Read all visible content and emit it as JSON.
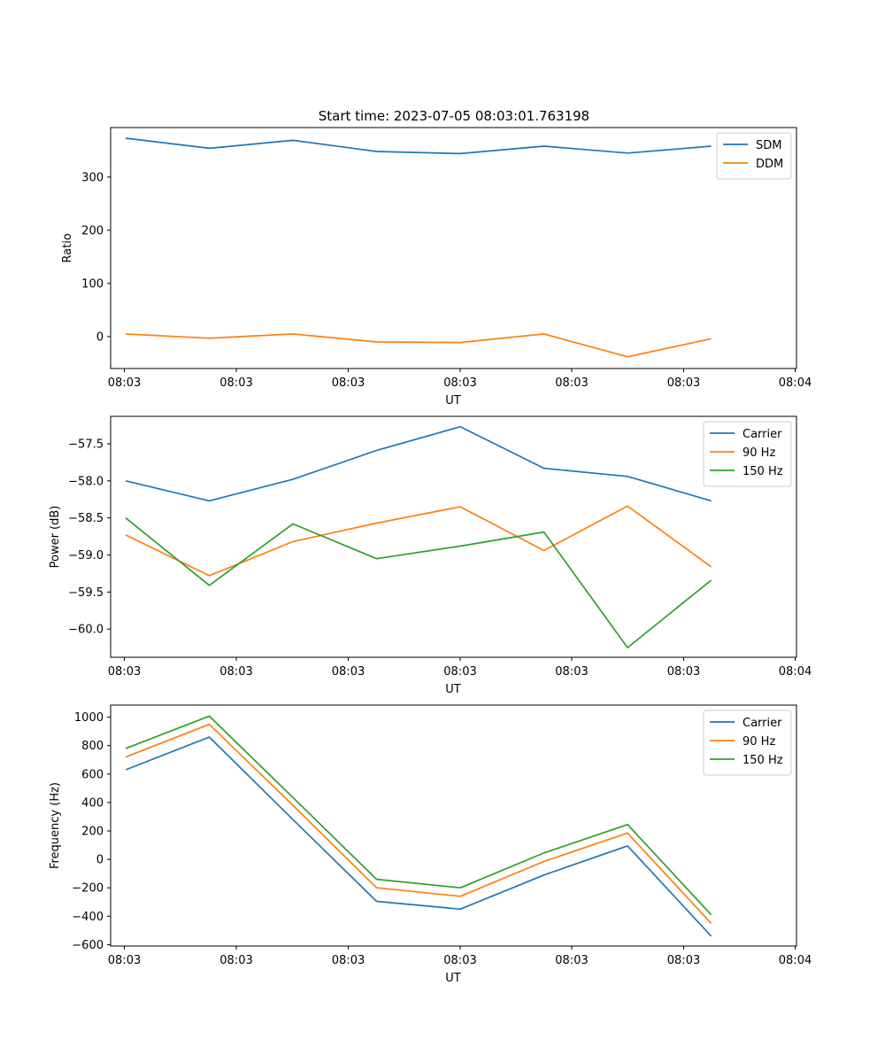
{
  "figure": {
    "title": "Start time: 2023-07-05 08:03:01.763198"
  },
  "chart_data": [
    {
      "type": "line",
      "ylabel": "Ratio",
      "xlabel": "UT",
      "x_tick_labels": [
        "08:03",
        "08:03",
        "08:03",
        "08:03",
        "08:03",
        "08:03",
        "08:04"
      ],
      "x_points": [
        1,
        2,
        3,
        4,
        5,
        6,
        7,
        8
      ],
      "xlim": [
        0.82,
        9.02
      ],
      "ylim": [
        -60,
        393
      ],
      "y_ticks": [
        0,
        100,
        200,
        300
      ],
      "y_tick_labels": [
        "0",
        "100",
        "200",
        "300"
      ],
      "legend": "upper right",
      "series": [
        {
          "name": "SDM",
          "color": "#1f77b4",
          "values": [
            373,
            354,
            369,
            348,
            344,
            358,
            345,
            358
          ]
        },
        {
          "name": "DDM",
          "color": "#ff7f0e",
          "values": [
            5,
            -3,
            5,
            -10,
            -11,
            5,
            -38,
            -4
          ]
        }
      ]
    },
    {
      "type": "line",
      "ylabel": "Power (dB)",
      "xlabel": "UT",
      "x_tick_labels": [
        "08:03",
        "08:03",
        "08:03",
        "08:03",
        "08:03",
        "08:03",
        "08:04"
      ],
      "x_points": [
        1,
        2,
        3,
        4,
        5,
        6,
        7,
        8
      ],
      "xlim": [
        0.82,
        9.02
      ],
      "ylim": [
        -60.38,
        -57.13
      ],
      "y_ticks": [
        -60.0,
        -59.5,
        -59.0,
        -58.5,
        -58.0,
        -57.5
      ],
      "y_tick_labels": [
        "−60.0",
        "−59.5",
        "−59.0",
        "−58.5",
        "−58.0",
        "−57.5"
      ],
      "legend": "upper right",
      "series": [
        {
          "name": "Carrier",
          "color": "#1f77b4",
          "values": [
            -58.0,
            -58.27,
            -57.98,
            -57.59,
            -57.27,
            -57.83,
            -57.94,
            -58.27
          ]
        },
        {
          "name": "90 Hz",
          "color": "#ff7f0e",
          "values": [
            -58.73,
            -59.28,
            -58.82,
            -58.57,
            -58.35,
            -58.94,
            -58.34,
            -59.16
          ]
        },
        {
          "name": "150 Hz",
          "color": "#2ca02c",
          "values": [
            -58.5,
            -59.41,
            -58.58,
            -59.05,
            -58.88,
            -58.69,
            -60.25,
            -59.34
          ]
        }
      ]
    },
    {
      "type": "line",
      "ylabel": "Frequency (Hz)",
      "xlabel": "UT",
      "x_tick_labels": [
        "08:03",
        "08:03",
        "08:03",
        "08:03",
        "08:03",
        "08:03",
        "08:04"
      ],
      "x_points": [
        1,
        2,
        3,
        4,
        5,
        6,
        7,
        8
      ],
      "xlim": [
        0.82,
        9.02
      ],
      "ylim": [
        -610,
        1085
      ],
      "y_ticks": [
        -600,
        -400,
        -200,
        0,
        200,
        400,
        600,
        800,
        1000
      ],
      "y_tick_labels": [
        "−600",
        "−400",
        "−200",
        "0",
        "200",
        "400",
        "600",
        "800",
        "1000"
      ],
      "legend": "upper right",
      "series": [
        {
          "name": "Carrier",
          "color": "#1f77b4",
          "values": [
            630,
            860,
            280,
            -295,
            -350,
            -110,
            95,
            -540
          ]
        },
        {
          "name": "90 Hz",
          "color": "#ff7f0e",
          "values": [
            720,
            950,
            380,
            -200,
            -260,
            -15,
            185,
            -450
          ]
        },
        {
          "name": "150 Hz",
          "color": "#2ca02c",
          "values": [
            780,
            1008,
            435,
            -140,
            -200,
            45,
            245,
            -390
          ]
        }
      ]
    }
  ]
}
